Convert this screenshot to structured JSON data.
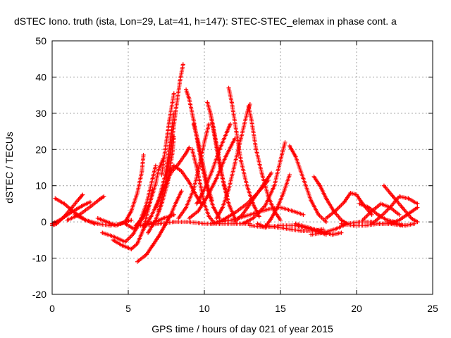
{
  "chart_data": {
    "type": "scatter",
    "title": "dSTEC Iono. truth (ista, Lon=29, Lat=41, h=147): STEC-STEC_elemax in phase cont. a",
    "xlabel": "GPS time / hours of day 021 of year 2015",
    "ylabel": "dSTEC  / TECUs",
    "xlim": [
      0,
      25
    ],
    "ylim": [
      -20,
      50
    ],
    "xticks": [
      0,
      5,
      10,
      15,
      20,
      25
    ],
    "yticks": [
      -20,
      -10,
      0,
      10,
      20,
      30,
      40,
      50
    ],
    "grid": true,
    "legend": "none",
    "marker": "plus",
    "color": "#ff0000",
    "series": [
      {
        "x": [
          0.0,
          0.3,
          0.8,
          1.3,
          1.8,
          2.0
        ],
        "y": [
          -1.0,
          -0.5,
          1.5,
          4.0,
          6.5,
          7.5
        ]
      },
      {
        "x": [
          0.2,
          0.8,
          1.5,
          2.2,
          2.8
        ],
        "y": [
          6.5,
          5.0,
          2.5,
          0.5,
          -0.5
        ]
      },
      {
        "x": [
          0.0,
          0.5,
          1.2,
          2.0,
          2.5
        ],
        "y": [
          -0.5,
          0.5,
          2.5,
          4.5,
          5.5
        ]
      },
      {
        "x": [
          1.0,
          1.8,
          2.6,
          3.2,
          3.4
        ],
        "y": [
          0.5,
          2.0,
          4.5,
          6.5,
          7.0
        ]
      },
      {
        "x": [
          1.5,
          2.2,
          3.0,
          3.8,
          4.5,
          5.2
        ],
        "y": [
          2.0,
          0.5,
          -0.5,
          -1.0,
          -0.5,
          0.5
        ]
      },
      {
        "x": [
          3.0,
          3.6,
          4.2,
          4.8,
          5.2,
          5.6,
          5.9,
          6.0
        ],
        "y": [
          1.0,
          0.0,
          -1.0,
          0.0,
          3.0,
          8.0,
          14.0,
          18.5
        ]
      },
      {
        "x": [
          3.3,
          4.0,
          4.8,
          5.3,
          5.8,
          6.1
        ],
        "y": [
          -3.0,
          -4.0,
          -5.5,
          -3.5,
          0.0,
          2.5
        ]
      },
      {
        "x": [
          4.0,
          4.6,
          5.2,
          5.6,
          6.0,
          6.4,
          6.6
        ],
        "y": [
          -5.0,
          -6.5,
          -7.5,
          -6.0,
          -2.0,
          5.0,
          9.0
        ]
      },
      {
        "x": [
          4.8,
          5.4,
          5.8,
          6.2,
          6.6,
          6.8
        ],
        "y": [
          -0.5,
          -2.0,
          0.5,
          5.0,
          12.0,
          15.5
        ]
      },
      {
        "x": [
          5.5,
          6.0,
          6.4,
          6.8,
          7.0,
          7.3
        ],
        "y": [
          -1.0,
          1.5,
          5.0,
          10.5,
          14.5,
          17.5
        ]
      },
      {
        "x": [
          5.6,
          6.2,
          6.6,
          7.0,
          7.4,
          7.8,
          8.1,
          8.5
        ],
        "y": [
          -11.0,
          -9.0,
          -6.5,
          -4.0,
          -1.0,
          2.0,
          5.0,
          8.5
        ]
      },
      {
        "x": [
          6.0,
          6.5,
          7.0,
          7.5,
          7.8,
          8.0
        ],
        "y": [
          -2.0,
          1.5,
          6.0,
          14.0,
          24.0,
          30.0
        ]
      },
      {
        "x": [
          6.3,
          6.8,
          7.2,
          7.6,
          7.9,
          8.0
        ],
        "y": [
          -3.0,
          0.5,
          5.0,
          11.0,
          19.0,
          23.5
        ]
      },
      {
        "x": [
          5.8,
          6.3,
          6.8,
          7.3,
          7.7,
          8.0
        ],
        "y": [
          -1.0,
          -0.5,
          0.0,
          1.0,
          1.5,
          2.0
        ]
      },
      {
        "x": [
          6.0,
          7.0,
          8.0,
          9.0,
          10.0,
          11.0,
          12.0,
          13.0
        ],
        "y": [
          -1.0,
          -0.5,
          0.0,
          0.0,
          -0.5,
          -0.5,
          -0.5,
          -0.5
        ]
      },
      {
        "x": [
          7.0,
          7.4,
          7.8,
          8.1,
          8.4,
          8.6
        ],
        "y": [
          3.0,
          10.0,
          20.0,
          30.0,
          39.0,
          43.5
        ]
      },
      {
        "x": [
          7.2,
          7.5,
          7.7,
          7.9,
          8.0
        ],
        "y": [
          13.0,
          22.0,
          28.0,
          33.0,
          35.5
        ]
      },
      {
        "x": [
          6.8,
          7.3,
          7.8,
          8.3,
          8.8,
          9.0
        ],
        "y": [
          4.0,
          9.0,
          13.5,
          16.0,
          19.0,
          20.5
        ]
      },
      {
        "x": [
          7.7,
          8.0,
          8.5,
          9.0,
          9.5,
          9.8
        ],
        "y": [
          14.0,
          15.5,
          14.0,
          11.0,
          7.0,
          5.0
        ]
      },
      {
        "x": [
          8.8,
          9.0,
          9.3,
          9.6,
          9.9,
          10.2,
          10.6,
          11.0
        ],
        "y": [
          36.5,
          34.0,
          28.0,
          21.0,
          14.5,
          9.0,
          4.0,
          1.0
        ]
      },
      {
        "x": [
          9.2,
          9.5,
          9.8,
          10.0,
          10.3,
          10.6
        ],
        "y": [
          20.0,
          15.0,
          9.0,
          5.0,
          1.5,
          0.0
        ]
      },
      {
        "x": [
          8.3,
          8.8,
          9.3,
          9.7,
          10.0,
          10.3
        ],
        "y": [
          1.0,
          4.0,
          9.0,
          16.0,
          22.0,
          27.0
        ]
      },
      {
        "x": [
          9.3,
          9.6,
          9.9,
          10.2,
          10.5
        ],
        "y": [
          27.0,
          22.0,
          16.0,
          10.0,
          6.0
        ]
      },
      {
        "x": [
          10.2,
          10.4,
          10.7,
          11.0,
          11.3,
          11.6,
          12.0
        ],
        "y": [
          33.0,
          30.0,
          23.0,
          16.0,
          10.0,
          5.0,
          1.0
        ]
      },
      {
        "x": [
          10.4,
          10.6,
          10.9,
          11.2,
          11.5
        ],
        "y": [
          30.0,
          26.0,
          19.0,
          12.0,
          7.0
        ]
      },
      {
        "x": [
          9.5,
          10.0,
          10.5,
          11.0,
          11.5,
          11.7
        ],
        "y": [
          5.0,
          9.0,
          14.0,
          20.0,
          25.0,
          27.0
        ]
      },
      {
        "x": [
          9.0,
          9.6,
          10.2,
          10.8,
          11.4,
          12.0
        ],
        "y": [
          1.0,
          3.0,
          7.0,
          12.0,
          18.0,
          23.0
        ]
      },
      {
        "x": [
          11.6,
          11.8,
          12.1,
          12.4,
          12.8,
          13.2,
          13.6
        ],
        "y": [
          37.0,
          33.0,
          25.0,
          17.0,
          10.0,
          5.0,
          1.5
        ]
      },
      {
        "x": [
          10.8,
          11.2,
          11.6,
          12.0,
          12.4,
          12.8,
          13.0
        ],
        "y": [
          1.0,
          4.0,
          9.0,
          16.0,
          23.0,
          30.0,
          32.5
        ]
      },
      {
        "x": [
          12.9,
          13.1,
          13.4,
          13.8,
          14.2,
          14.6,
          15.0
        ],
        "y": [
          32.0,
          28.0,
          20.0,
          13.0,
          7.0,
          3.0,
          0.5
        ]
      },
      {
        "x": [
          12.0,
          12.5,
          13.0,
          13.5,
          14.0,
          14.4
        ],
        "y": [
          0.0,
          2.0,
          5.0,
          8.0,
          11.0,
          13.5
        ]
      },
      {
        "x": [
          11.0,
          11.8,
          12.6,
          13.4,
          14.2,
          15.0,
          15.8,
          16.5
        ],
        "y": [
          0.0,
          0.5,
          1.5,
          2.5,
          3.5,
          4.0,
          3.0,
          2.0
        ]
      },
      {
        "x": [
          10.5,
          11.2,
          12.0,
          12.8,
          13.5,
          14.2
        ],
        "y": [
          -0.5,
          0.5,
          2.5,
          5.0,
          8.0,
          11.5
        ]
      },
      {
        "x": [
          12.5,
          13.2,
          14.0,
          14.6,
          15.0,
          15.3
        ],
        "y": [
          -0.5,
          1.0,
          4.5,
          10.0,
          17.0,
          22.0
        ]
      },
      {
        "x": [
          13.5,
          14.0,
          14.4,
          14.8,
          15.2,
          15.6
        ],
        "y": [
          -0.5,
          -1.5,
          1.0,
          4.0,
          8.0,
          13.0
        ]
      },
      {
        "x": [
          15.6,
          16.0,
          16.5,
          17.0,
          17.5,
          18.0
        ],
        "y": [
          21.0,
          18.0,
          12.0,
          6.0,
          2.0,
          0.0
        ]
      },
      {
        "x": [
          14.0,
          14.8,
          15.6,
          16.4,
          17.2,
          17.8
        ],
        "y": [
          -1.0,
          -1.5,
          -2.0,
          -2.5,
          -2.5,
          -2.0
        ]
      },
      {
        "x": [
          13.0,
          14.0,
          15.0,
          16.0,
          17.0,
          18.0
        ],
        "y": [
          -1.0,
          -1.5,
          -1.0,
          -1.0,
          -2.0,
          -3.5
        ]
      },
      {
        "x": [
          17.2,
          17.6,
          18.0,
          18.5,
          19.0,
          19.4
        ],
        "y": [
          12.5,
          10.0,
          6.5,
          3.0,
          0.5,
          -0.5
        ]
      },
      {
        "x": [
          16.0,
          16.8,
          17.6,
          18.4,
          19.0
        ],
        "y": [
          -0.5,
          -1.5,
          -2.5,
          -3.5,
          -3.0
        ]
      },
      {
        "x": [
          17.0,
          17.8,
          18.6,
          19.4,
          20.2,
          21.0
        ],
        "y": [
          -3.5,
          -3.0,
          -2.0,
          -0.5,
          0.0,
          0.0
        ]
      },
      {
        "x": [
          18.0,
          18.6,
          19.2,
          19.6,
          20.0,
          20.4,
          21.0
        ],
        "y": [
          1.0,
          3.0,
          5.5,
          8.0,
          7.5,
          5.0,
          2.0
        ]
      },
      {
        "x": [
          19.0,
          19.8,
          20.6,
          21.4,
          22.2,
          23.0
        ],
        "y": [
          -0.5,
          -1.0,
          -1.0,
          -0.5,
          -0.5,
          -1.0
        ]
      },
      {
        "x": [
          20.2,
          20.8,
          21.4,
          22.0,
          22.5
        ],
        "y": [
          5.0,
          4.0,
          2.0,
          0.5,
          0.0
        ]
      },
      {
        "x": [
          20.4,
          21.0,
          21.6,
          22.2,
          22.8
        ],
        "y": [
          0.5,
          3.0,
          5.0,
          4.0,
          2.0
        ]
      },
      {
        "x": [
          21.0,
          21.6,
          22.2,
          22.8,
          23.4,
          24.0
        ],
        "y": [
          -0.5,
          1.5,
          4.0,
          7.0,
          6.5,
          5.0
        ]
      },
      {
        "x": [
          21.8,
          22.4,
          23.0,
          23.6,
          24.0
        ],
        "y": [
          10.0,
          7.0,
          4.0,
          1.0,
          0.0
        ]
      },
      {
        "x": [
          21.5,
          22.2,
          22.8,
          23.5,
          24.0
        ],
        "y": [
          -0.5,
          -0.5,
          0.5,
          2.5,
          4.0
        ]
      },
      {
        "x": [
          22.0,
          22.6,
          23.2,
          23.8
        ],
        "y": [
          0.0,
          -0.5,
          -1.0,
          -0.5
        ]
      }
    ]
  }
}
